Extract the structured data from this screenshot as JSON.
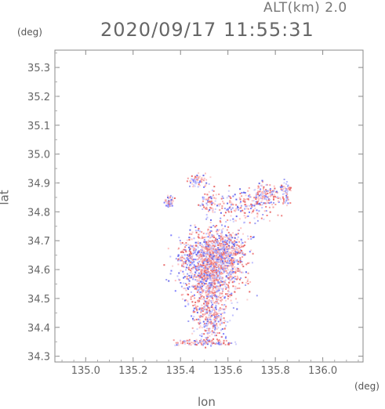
{
  "header": {
    "alt_label": "ALT(km) 2.0",
    "timestamp": "2020/09/17 11:55:31"
  },
  "axes": {
    "x_label": "lon",
    "x_unit": "(deg)",
    "y_label": "lat",
    "y_unit": "(deg)"
  },
  "chart_data": {
    "type": "heatmap",
    "title": "2020/09/17 11:55:31",
    "subtitle": "ALT(km) 2.0",
    "xlabel": "lon",
    "ylabel": "lat",
    "xlim": [
      134.87,
      136.17
    ],
    "ylim": [
      34.28,
      35.36
    ],
    "grid": false,
    "x_ticks": [
      "135.0",
      "135.2",
      "135.4",
      "135.6",
      "135.8",
      "136.0"
    ],
    "y_ticks": [
      "34.3",
      "34.4",
      "34.5",
      "34.6",
      "34.7",
      "34.8",
      "34.9",
      "35.0",
      "35.1",
      "35.2",
      "35.3"
    ],
    "colors": {
      "positive": "#f08080",
      "negative": "#7f7fff",
      "axis": "#888888"
    },
    "echo_clusters": [
      {
        "lon": 135.53,
        "lat": 34.62,
        "spread_lon": 0.07,
        "spread_lat": 0.06,
        "weight": 14
      },
      {
        "lon": 135.52,
        "lat": 34.52,
        "spread_lon": 0.04,
        "spread_lat": 0.07,
        "weight": 8
      },
      {
        "lon": 135.57,
        "lat": 34.66,
        "spread_lon": 0.05,
        "spread_lat": 0.04,
        "weight": 8
      },
      {
        "lon": 135.53,
        "lat": 34.42,
        "spread_lon": 0.03,
        "spread_lat": 0.03,
        "weight": 2
      },
      {
        "lon": 135.49,
        "lat": 34.35,
        "spread_lon": 0.07,
        "spread_lat": 0.005,
        "weight": 2
      },
      {
        "lon": 135.66,
        "lat": 34.82,
        "spread_lon": 0.07,
        "spread_lat": 0.03,
        "weight": 3
      },
      {
        "lon": 135.75,
        "lat": 34.86,
        "spread_lon": 0.03,
        "spread_lat": 0.02,
        "weight": 2
      },
      {
        "lon": 135.84,
        "lat": 34.87,
        "spread_lon": 0.01,
        "spread_lat": 0.02,
        "weight": 1
      },
      {
        "lon": 135.47,
        "lat": 34.91,
        "spread_lon": 0.02,
        "spread_lat": 0.01,
        "weight": 1
      },
      {
        "lon": 135.52,
        "lat": 34.84,
        "spread_lon": 0.02,
        "spread_lat": 0.02,
        "weight": 1
      },
      {
        "lon": 135.35,
        "lat": 34.84,
        "spread_lon": 0.01,
        "spread_lat": 0.01,
        "weight": 1
      },
      {
        "lon": 135.42,
        "lat": 34.65,
        "spread_lon": 0.02,
        "spread_lat": 0.02,
        "weight": 1
      }
    ]
  }
}
